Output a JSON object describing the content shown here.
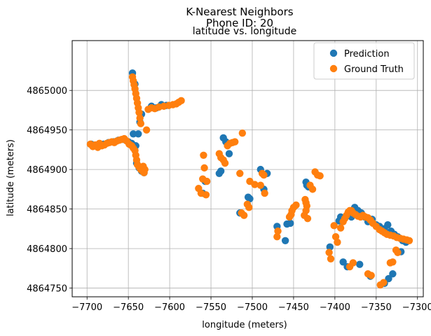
{
  "chart_data": {
    "type": "scatter",
    "suptitle_line1": "K-Nearest Neighbors",
    "suptitle_line2": "Phone ID: 20",
    "title": "latitude vs. longitude",
    "xlabel": "longitude (meters)",
    "ylabel": "latitude (meters)",
    "xlim": [
      -7718,
      -7293
    ],
    "ylim": [
      4864739,
      4865063
    ],
    "xticks": [
      -7700,
      -7650,
      -7600,
      -7550,
      -7500,
      -7450,
      -7400,
      -7350,
      -7300
    ],
    "yticks": [
      4864750,
      4864800,
      4864850,
      4864900,
      4864950,
      4865000
    ],
    "xtick_labels": [
      "−7700",
      "−7650",
      "−7600",
      "−7550",
      "−7500",
      "−7450",
      "−7400",
      "−7350",
      "−7300"
    ],
    "ytick_labels": [
      "4864750",
      "4864800",
      "4864850",
      "4864900",
      "4864950",
      "4865000"
    ],
    "grid": true,
    "legend_position": "top-right",
    "series": [
      {
        "name": "Prediction",
        "color": "#1f77b4",
        "points": [
          [
            -7695,
            4864932
          ],
          [
            -7690,
            4864930
          ],
          [
            -7686,
            4864930
          ],
          [
            -7680,
            4864932
          ],
          [
            -7674,
            4864934
          ],
          [
            -7668,
            4864935
          ],
          [
            -7662,
            4864937
          ],
          [
            -7656,
            4864938
          ],
          [
            -7650,
            4864935
          ],
          [
            -7646,
            4864933
          ],
          [
            -7641,
            4864930
          ],
          [
            -7638,
            4864945
          ],
          [
            -7636,
            4864960
          ],
          [
            -7634,
            4864970
          ],
          [
            -7642,
            4865008
          ],
          [
            -7645,
            4865022
          ],
          [
            -7622,
            4864980
          ],
          [
            -7616,
            4864978
          ],
          [
            -7610,
            4864982
          ],
          [
            -7604,
            4864981
          ],
          [
            -7640,
            4864908
          ],
          [
            -7637,
            4864902
          ],
          [
            -7634,
            4864898
          ],
          [
            -7631,
            4864896
          ],
          [
            -7644,
            4864945
          ],
          [
            -7557,
            4864885
          ],
          [
            -7560,
            4864870
          ],
          [
            -7540,
            4864895
          ],
          [
            -7538,
            4864898
          ],
          [
            -7535,
            4864940
          ],
          [
            -7528,
            4864920
          ],
          [
            -7532,
            4864935
          ],
          [
            -7515,
            4864845
          ],
          [
            -7505,
            4864865
          ],
          [
            -7503,
            4864863
          ],
          [
            -7490,
            4864900
          ],
          [
            -7486,
            4864875
          ],
          [
            -7482,
            4864895
          ],
          [
            -7470,
            4864828
          ],
          [
            -7460,
            4864810
          ],
          [
            -7458,
            4864831
          ],
          [
            -7454,
            4864832
          ],
          [
            -7435,
            4864884
          ],
          [
            -7434,
            4864880
          ],
          [
            -7432,
            4864878
          ],
          [
            -7406,
            4864802
          ],
          [
            -7395,
            4864835
          ],
          [
            -7393,
            4864840
          ],
          [
            -7390,
            4864783
          ],
          [
            -7385,
            4864777
          ],
          [
            -7380,
            4864840
          ],
          [
            -7376,
            4864852
          ],
          [
            -7372,
            4864848
          ],
          [
            -7368,
            4864845
          ],
          [
            -7364,
            4864840
          ],
          [
            -7360,
            4864834
          ],
          [
            -7355,
            4864837
          ],
          [
            -7350,
            4864830
          ],
          [
            -7346,
            4864828
          ],
          [
            -7340,
            4864825
          ],
          [
            -7336,
            4864830
          ],
          [
            -7332,
            4864822
          ],
          [
            -7328,
            4864818
          ],
          [
            -7324,
            4864815
          ],
          [
            -7318,
            4864810
          ],
          [
            -7314,
            4864808
          ],
          [
            -7320,
            4864796
          ],
          [
            -7357,
            4864765
          ],
          [
            -7340,
            4864756
          ],
          [
            -7335,
            4864762
          ],
          [
            -7330,
            4864768
          ],
          [
            -7370,
            4864780
          ]
        ]
      },
      {
        "name": "Ground Truth",
        "color": "#ff7f0e",
        "points": [
          [
            -7696,
            4864932
          ],
          [
            -7693,
            4864929
          ],
          [
            -7690,
            4864931
          ],
          [
            -7687,
            4864928
          ],
          [
            -7685,
            4864933
          ],
          [
            -7682,
            4864930
          ],
          [
            -7679,
            4864931
          ],
          [
            -7676,
            4864933
          ],
          [
            -7673,
            4864934
          ],
          [
            -7670,
            4864935
          ],
          [
            -7667,
            4864934
          ],
          [
            -7664,
            4864936
          ],
          [
            -7661,
            4864937
          ],
          [
            -7658,
            4864938
          ],
          [
            -7655,
            4864939
          ],
          [
            -7652,
            4864936
          ],
          [
            -7649,
            4864932
          ],
          [
            -7646,
            4864930
          ],
          [
            -7644,
            4864927
          ],
          [
            -7642,
            4864924
          ],
          [
            -7641,
            4864918
          ],
          [
            -7640,
            4864912
          ],
          [
            -7639,
            4864906
          ],
          [
            -7637,
            4864903
          ],
          [
            -7635,
            4864900
          ],
          [
            -7633,
            4864898
          ],
          [
            -7631,
            4864896
          ],
          [
            -7630,
            4864900
          ],
          [
            -7632,
            4864904
          ],
          [
            -7645,
            4865017
          ],
          [
            -7644,
            4865012
          ],
          [
            -7643,
            4865007
          ],
          [
            -7642,
            4865002
          ],
          [
            -7641,
            4864996
          ],
          [
            -7640,
            4864990
          ],
          [
            -7639,
            4864984
          ],
          [
            -7638,
            4864978
          ],
          [
            -7637,
            4864972
          ],
          [
            -7636,
            4864965
          ],
          [
            -7635,
            4864958
          ],
          [
            -7628,
            4864950
          ],
          [
            -7626,
            4864976
          ],
          [
            -7622,
            4864978
          ],
          [
            -7618,
            4864977
          ],
          [
            -7613,
            4864979
          ],
          [
            -7607,
            4864980
          ],
          [
            -7601,
            4864981
          ],
          [
            -7596,
            4864982
          ],
          [
            -7592,
            4864983
          ],
          [
            -7589,
            4864985
          ],
          [
            -7586,
            4864987
          ],
          [
            -7560,
            4864888
          ],
          [
            -7558,
            4864902
          ],
          [
            -7559,
            4864918
          ],
          [
            -7555,
            4864885
          ],
          [
            -7556,
            4864868
          ],
          [
            -7565,
            4864876
          ],
          [
            -7562,
            4864870
          ],
          [
            -7540,
            4864920
          ],
          [
            -7538,
            4864915
          ],
          [
            -7535,
            4864912
          ],
          [
            -7533,
            4864908
          ],
          [
            -7530,
            4864930
          ],
          [
            -7527,
            4864933
          ],
          [
            -7524,
            4864934
          ],
          [
            -7521,
            4864935
          ],
          [
            -7515,
            4864895
          ],
          [
            -7513,
            4864845
          ],
          [
            -7510,
            4864842
          ],
          [
            -7506,
            4864856
          ],
          [
            -7504,
            4864852
          ],
          [
            -7503,
            4864885
          ],
          [
            -7497,
            4864881
          ],
          [
            -7490,
            4864880
          ],
          [
            -7488,
            4864895
          ],
          [
            -7486,
            4864893
          ],
          [
            -7485,
            4864870
          ],
          [
            -7512,
            4864946
          ],
          [
            -7470,
            4864815
          ],
          [
            -7469,
            4864822
          ],
          [
            -7455,
            4864840
          ],
          [
            -7453,
            4864843
          ],
          [
            -7452,
            4864848
          ],
          [
            -7450,
            4864852
          ],
          [
            -7447,
            4864855
          ],
          [
            -7436,
            4864862
          ],
          [
            -7435,
            4864858
          ],
          [
            -7434,
            4864854
          ],
          [
            -7435,
            4864848
          ],
          [
            -7437,
            4864842
          ],
          [
            -7433,
            4864838
          ],
          [
            -7430,
            4864880
          ],
          [
            -7427,
            4864875
          ],
          [
            -7424,
            4864897
          ],
          [
            -7421,
            4864893
          ],
          [
            -7418,
            4864892
          ],
          [
            -7407,
            4864795
          ],
          [
            -7405,
            4864787
          ],
          [
            -7401,
            4864829
          ],
          [
            -7399,
            4864815
          ],
          [
            -7397,
            4864808
          ],
          [
            -7393,
            4864826
          ],
          [
            -7390,
            4864834
          ],
          [
            -7388,
            4864838
          ],
          [
            -7386,
            4864842
          ],
          [
            -7384,
            4864846
          ],
          [
            -7382,
            4864848
          ],
          [
            -7380,
            4864848
          ],
          [
            -7378,
            4864845
          ],
          [
            -7375,
            4864843
          ],
          [
            -7372,
            4864841
          ],
          [
            -7369,
            4864840
          ],
          [
            -7366,
            4864842
          ],
          [
            -7363,
            4864840
          ],
          [
            -7360,
            4864839
          ],
          [
            -7357,
            4864836
          ],
          [
            -7354,
            4864832
          ],
          [
            -7350,
            4864828
          ],
          [
            -7346,
            4864824
          ],
          [
            -7343,
            4864822
          ],
          [
            -7340,
            4864820
          ],
          [
            -7337,
            4864818
          ],
          [
            -7333,
            4864817
          ],
          [
            -7329,
            4864816
          ],
          [
            -7325,
            4864814
          ],
          [
            -7321,
            4864813
          ],
          [
            -7317,
            4864812
          ],
          [
            -7313,
            4864811
          ],
          [
            -7310,
            4864810
          ],
          [
            -7326,
            4864798
          ],
          [
            -7324,
            4864795
          ],
          [
            -7330,
            4864783
          ],
          [
            -7333,
            4864782
          ],
          [
            -7360,
            4864768
          ],
          [
            -7356,
            4864766
          ],
          [
            -7345,
            4864754
          ],
          [
            -7341,
            4864757
          ],
          [
            -7378,
            4864782
          ],
          [
            -7382,
            4864777
          ]
        ]
      }
    ]
  }
}
